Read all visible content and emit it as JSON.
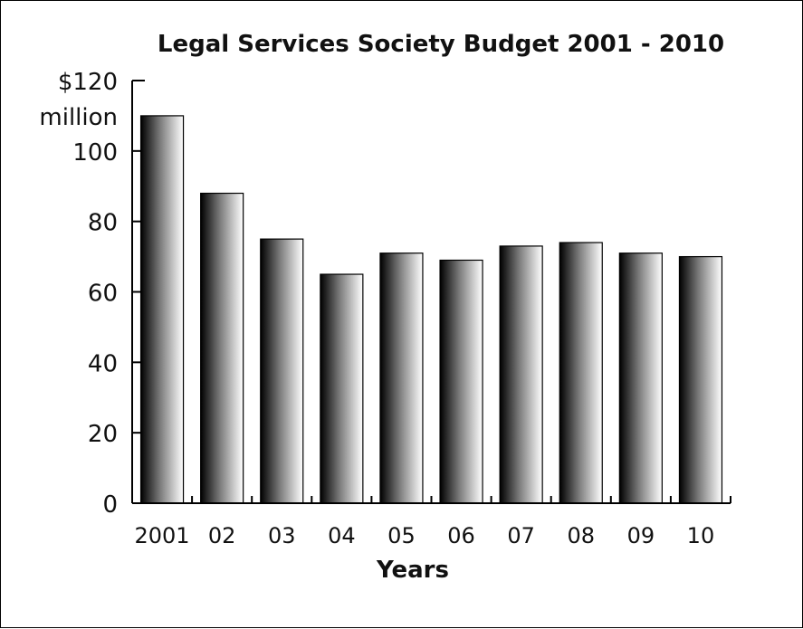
{
  "chart_data": {
    "type": "bar",
    "title": "Legal Services Society Budget 2001 - 2010",
    "xlabel": "Years",
    "ylabel": "",
    "categories": [
      "2001",
      "02",
      "03",
      "04",
      "05",
      "06",
      "07",
      "08",
      "09",
      "10"
    ],
    "values": [
      110,
      88,
      75,
      65,
      71,
      69,
      73,
      74,
      71,
      70
    ],
    "ylim": [
      0,
      120
    ],
    "y_ticks": [
      0,
      20,
      40,
      60,
      80,
      100,
      120
    ],
    "y_tick_labels": [
      "0",
      "20",
      "40",
      "60",
      "80",
      "100",
      "$120"
    ],
    "y_unit_label": "million",
    "grid": false,
    "legend": "none",
    "bar_gradient": [
      "#000000",
      "#ffffff"
    ]
  }
}
